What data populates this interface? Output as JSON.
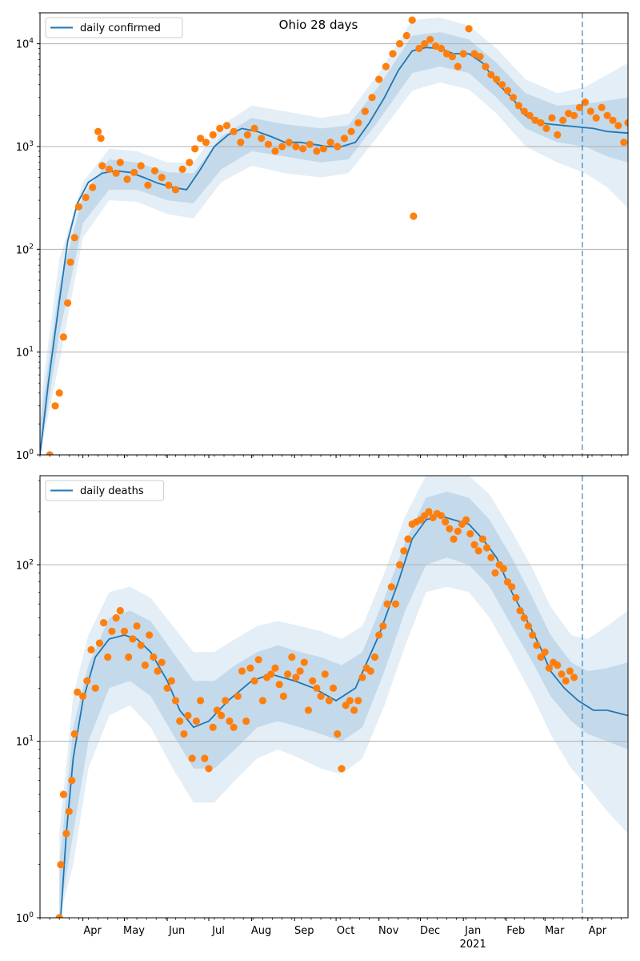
{
  "figure": {
    "title": "Ohio 28 days"
  },
  "colors": {
    "model": "#1f77b4",
    "observed": "#ff7f0e",
    "band": "#1f77b4",
    "grid": "#b0b0b0"
  },
  "chart_data": [
    {
      "type": "line",
      "yscale": "log",
      "ylim": [
        1,
        20000
      ],
      "xlim": [
        "2020-03-01",
        "2021-04-30"
      ],
      "grid": "horizontal major lines",
      "legend": {
        "position": "top-left",
        "entries": [
          "daily confirmed"
        ]
      },
      "yticks": [
        {
          "value": 1,
          "label": "10^0"
        },
        {
          "value": 10,
          "label": "10^1"
        },
        {
          "value": 100,
          "label": "10^2"
        },
        {
          "value": 1000,
          "label": "10^3"
        },
        {
          "value": 10000,
          "label": "10^4"
        }
      ],
      "xticks": [],
      "vline": "2021-03-28",
      "series": [
        {
          "name": "daily confirmed",
          "x": [
            "2020-03-01",
            "2020-03-07",
            "2020-03-14",
            "2020-03-21",
            "2020-03-28",
            "2020-04-05",
            "2020-04-15",
            "2020-04-25",
            "2020-05-05",
            "2020-05-15",
            "2020-05-25",
            "2020-06-05",
            "2020-06-15",
            "2020-06-25",
            "2020-07-05",
            "2020-07-15",
            "2020-07-25",
            "2020-08-05",
            "2020-08-15",
            "2020-08-25",
            "2020-09-05",
            "2020-09-15",
            "2020-09-25",
            "2020-10-05",
            "2020-10-15",
            "2020-10-25",
            "2020-11-05",
            "2020-11-15",
            "2020-11-25",
            "2020-12-05",
            "2020-12-15",
            "2020-12-25",
            "2021-01-05",
            "2021-01-15",
            "2021-01-25",
            "2021-02-05",
            "2021-02-15",
            "2021-02-25",
            "2021-03-05",
            "2021-03-15",
            "2021-03-25",
            "2021-04-05",
            "2021-04-15",
            "2021-04-30"
          ],
          "y": [
            1,
            5,
            25,
            120,
            280,
            450,
            550,
            580,
            560,
            500,
            440,
            400,
            380,
            600,
            1000,
            1300,
            1500,
            1400,
            1250,
            1100,
            1100,
            1050,
            1000,
            1000,
            1100,
            1700,
            3000,
            5500,
            8500,
            9200,
            9000,
            8000,
            8000,
            6500,
            4200,
            3000,
            2000,
            1700,
            1650,
            1600,
            1550,
            1500,
            1400,
            1350
          ]
        }
      ],
      "observed_points": {
        "x": [
          "2020-03-08",
          "2020-03-12",
          "2020-03-15",
          "2020-03-18",
          "2020-03-21",
          "2020-03-23",
          "2020-03-26",
          "2020-03-29",
          "2020-04-03",
          "2020-04-08",
          "2020-04-12",
          "2020-04-14",
          "2020-04-15",
          "2020-04-20",
          "2020-04-25",
          "2020-04-28",
          "2020-05-03",
          "2020-05-08",
          "2020-05-13",
          "2020-05-18",
          "2020-05-23",
          "2020-05-28",
          "2020-06-02",
          "2020-06-07",
          "2020-06-12",
          "2020-06-17",
          "2020-06-21",
          "2020-06-25",
          "2020-06-29",
          "2020-07-04",
          "2020-07-09",
          "2020-07-14",
          "2020-07-19",
          "2020-07-24",
          "2020-07-29",
          "2020-08-03",
          "2020-08-08",
          "2020-08-13",
          "2020-08-18",
          "2020-08-23",
          "2020-08-28",
          "2020-09-02",
          "2020-09-07",
          "2020-09-12",
          "2020-09-17",
          "2020-09-22",
          "2020-09-27",
          "2020-10-02",
          "2020-10-07",
          "2020-10-12",
          "2020-10-17",
          "2020-10-22",
          "2020-10-27",
          "2020-11-01",
          "2020-11-06",
          "2020-11-11",
          "2020-11-16",
          "2020-11-21",
          "2020-11-25",
          "2020-11-26",
          "2020-11-30",
          "2020-12-04",
          "2020-12-08",
          "2020-12-12",
          "2020-12-16",
          "2020-12-20",
          "2020-12-24",
          "2020-12-28",
          "2021-01-01",
          "2021-01-05",
          "2021-01-09",
          "2021-01-13",
          "2021-01-17",
          "2021-01-21",
          "2021-01-25",
          "2021-01-29",
          "2021-02-02",
          "2021-02-06",
          "2021-02-10",
          "2021-02-14",
          "2021-02-18",
          "2021-02-22",
          "2021-02-26",
          "2021-03-02",
          "2021-03-06",
          "2021-03-10",
          "2021-03-14",
          "2021-03-18",
          "2021-03-22",
          "2021-03-26",
          "2021-03-30",
          "2021-04-03",
          "2021-04-07",
          "2021-04-11",
          "2021-04-15",
          "2021-04-19",
          "2021-04-23",
          "2021-04-27",
          "2021-04-30"
        ],
        "y": [
          1,
          3,
          4,
          14,
          30,
          75,
          130,
          260,
          320,
          400,
          1400,
          1200,
          650,
          600,
          550,
          700,
          480,
          560,
          650,
          420,
          580,
          500,
          420,
          380,
          600,
          700,
          950,
          1200,
          1100,
          1300,
          1500,
          1600,
          1400,
          1100,
          1300,
          1500,
          1200,
          1050,
          900,
          1000,
          1100,
          1000,
          950,
          1050,
          900,
          950,
          1100,
          1000,
          1200,
          1400,
          1700,
          2200,
          3000,
          4500,
          6000,
          8000,
          10000,
          12000,
          17000,
          210,
          9000,
          10000,
          11000,
          9500,
          9000,
          8000,
          7500,
          6000,
          8000,
          14000,
          8000,
          7500,
          6000,
          5000,
          4500,
          4000,
          3500,
          3000,
          2500,
          2200,
          2000,
          1800,
          1700,
          1500,
          1900,
          1300,
          1800,
          2100,
          2000,
          2400,
          2700,
          2200,
          1900,
          2400,
          2000,
          1800,
          1600,
          1100,
          1700
        ]
      },
      "bands": {
        "x": [
          "2020-03-01",
          "2020-03-15",
          "2020-04-01",
          "2020-04-20",
          "2020-05-10",
          "2020-06-01",
          "2020-06-20",
          "2020-07-10",
          "2020-08-01",
          "2020-08-25",
          "2020-09-20",
          "2020-10-10",
          "2020-11-01",
          "2020-11-25",
          "2020-12-15",
          "2021-01-05",
          "2021-01-25",
          "2021-02-15",
          "2021-03-10",
          "2021-03-30",
          "2021-04-15",
          "2021-04-30"
        ],
        "inner_low": [
          1,
          15,
          180,
          380,
          380,
          300,
          280,
          600,
          900,
          800,
          700,
          750,
          1800,
          5200,
          6000,
          5200,
          3000,
          1500,
          1100,
          1000,
          800,
          700
        ],
        "inner_high": [
          2,
          45,
          330,
          750,
          700,
          560,
          550,
          1250,
          1900,
          1650,
          1500,
          1600,
          3900,
          12000,
          13000,
          11000,
          6500,
          3300,
          2500,
          2600,
          2800,
          3000
        ],
        "outer_low": [
          1,
          8,
          130,
          300,
          290,
          220,
          200,
          450,
          650,
          550,
          500,
          550,
          1300,
          3500,
          4200,
          3600,
          2100,
          1000,
          700,
          550,
          400,
          250
        ],
        "outer_high": [
          3,
          80,
          450,
          950,
          900,
          700,
          700,
          1600,
          2500,
          2200,
          1900,
          2100,
          5200,
          17000,
          18000,
          15000,
          9000,
          4500,
          3300,
          3800,
          5000,
          6500
        ]
      }
    },
    {
      "type": "line",
      "yscale": "log",
      "ylim": [
        1,
        320
      ],
      "xlim": [
        "2020-03-01",
        "2021-04-30"
      ],
      "grid": "horizontal major lines",
      "legend": {
        "position": "top-left",
        "entries": [
          "daily deaths"
        ]
      },
      "yticks": [
        {
          "value": 1,
          "label": "10^0"
        },
        {
          "value": 10,
          "label": "10^1"
        },
        {
          "value": 100,
          "label": "10^2"
        }
      ],
      "xticks": [
        {
          "date": "2020-04-01",
          "label": "Apr"
        },
        {
          "date": "2020-05-01",
          "label": "May"
        },
        {
          "date": "2020-06-01",
          "label": "Jun"
        },
        {
          "date": "2020-07-01",
          "label": "Jul"
        },
        {
          "date": "2020-08-01",
          "label": "Aug"
        },
        {
          "date": "2020-09-01",
          "label": "Sep"
        },
        {
          "date": "2020-10-01",
          "label": "Oct"
        },
        {
          "date": "2020-11-01",
          "label": "Nov"
        },
        {
          "date": "2020-12-01",
          "label": "Dec"
        },
        {
          "date": "2021-01-01",
          "label": "Jan",
          "sublabel": "2021"
        },
        {
          "date": "2021-02-01",
          "label": "Feb"
        },
        {
          "date": "2021-03-01",
          "label": "Mar"
        },
        {
          "date": "2021-04-01",
          "label": "Apr"
        }
      ],
      "vline": "2021-03-28",
      "series": [
        {
          "name": "daily deaths",
          "x": [
            "2020-03-16",
            "2020-03-20",
            "2020-03-25",
            "2020-04-01",
            "2020-04-10",
            "2020-04-20",
            "2020-05-01",
            "2020-05-10",
            "2020-05-20",
            "2020-06-01",
            "2020-06-10",
            "2020-06-20",
            "2020-07-01",
            "2020-07-15",
            "2020-08-01",
            "2020-08-15",
            "2020-09-01",
            "2020-09-15",
            "2020-10-01",
            "2020-10-15",
            "2020-11-01",
            "2020-11-15",
            "2020-11-25",
            "2020-12-05",
            "2020-12-15",
            "2020-12-25",
            "2021-01-05",
            "2021-01-15",
            "2021-01-25",
            "2021-02-05",
            "2021-02-15",
            "2021-02-25",
            "2021-03-05",
            "2021-03-15",
            "2021-03-25",
            "2021-04-05",
            "2021-04-15",
            "2021-04-30"
          ],
          "y": [
            1,
            3,
            8,
            17,
            30,
            38,
            40,
            38,
            32,
            22,
            15,
            12,
            13,
            17,
            22,
            24,
            22,
            20,
            17,
            20,
            40,
            80,
            140,
            180,
            190,
            180,
            170,
            140,
            110,
            70,
            50,
            35,
            25,
            20,
            17,
            15,
            15,
            14
          ]
        }
      ],
      "observed_points": {
        "x": [
          "2020-03-15",
          "2020-03-16",
          "2020-03-18",
          "2020-03-20",
          "2020-03-22",
          "2020-03-24",
          "2020-03-26",
          "2020-03-28",
          "2020-04-01",
          "2020-04-04",
          "2020-04-07",
          "2020-04-10",
          "2020-04-13",
          "2020-04-16",
          "2020-04-19",
          "2020-04-22",
          "2020-04-25",
          "2020-04-28",
          "2020-05-01",
          "2020-05-04",
          "2020-05-07",
          "2020-05-10",
          "2020-05-13",
          "2020-05-16",
          "2020-05-19",
          "2020-05-22",
          "2020-05-25",
          "2020-05-28",
          "2020-06-01",
          "2020-06-04",
          "2020-06-07",
          "2020-06-10",
          "2020-06-13",
          "2020-06-16",
          "2020-06-19",
          "2020-06-22",
          "2020-06-25",
          "2020-06-28",
          "2020-07-01",
          "2020-07-04",
          "2020-07-07",
          "2020-07-10",
          "2020-07-13",
          "2020-07-16",
          "2020-07-19",
          "2020-07-22",
          "2020-07-25",
          "2020-07-28",
          "2020-07-31",
          "2020-08-03",
          "2020-08-06",
          "2020-08-09",
          "2020-08-12",
          "2020-08-15",
          "2020-08-18",
          "2020-08-21",
          "2020-08-24",
          "2020-08-27",
          "2020-08-30",
          "2020-09-02",
          "2020-09-05",
          "2020-09-08",
          "2020-09-11",
          "2020-09-14",
          "2020-09-17",
          "2020-09-20",
          "2020-09-23",
          "2020-09-26",
          "2020-09-29",
          "2020-10-02",
          "2020-10-05",
          "2020-10-08",
          "2020-10-11",
          "2020-10-14",
          "2020-10-17",
          "2020-10-20",
          "2020-10-23",
          "2020-10-26",
          "2020-10-29",
          "2020-11-01",
          "2020-11-04",
          "2020-11-07",
          "2020-11-10",
          "2020-11-13",
          "2020-11-16",
          "2020-11-19",
          "2020-11-22",
          "2020-11-25",
          "2020-11-28",
          "2020-12-01",
          "2020-12-04",
          "2020-12-07",
          "2020-12-10",
          "2020-12-13",
          "2020-12-16",
          "2020-12-19",
          "2020-12-22",
          "2020-12-25",
          "2020-12-28",
          "2020-12-31",
          "2021-01-03",
          "2021-01-06",
          "2021-01-09",
          "2021-01-12",
          "2021-01-15",
          "2021-01-18",
          "2021-01-21",
          "2021-01-24",
          "2021-01-27",
          "2021-01-30",
          "2021-02-02",
          "2021-02-05",
          "2021-02-08",
          "2021-02-11",
          "2021-02-14",
          "2021-02-17",
          "2021-02-20",
          "2021-02-23",
          "2021-02-26",
          "2021-03-01",
          "2021-03-04",
          "2021-03-07",
          "2021-03-10",
          "2021-03-13",
          "2021-03-16",
          "2021-03-19",
          "2021-03-22"
        ],
        "y": [
          1,
          2,
          5,
          3,
          4,
          6,
          11,
          19,
          18,
          22,
          33,
          20,
          36,
          47,
          30,
          42,
          50,
          55,
          42,
          30,
          38,
          45,
          35,
          27,
          40,
          30,
          25,
          28,
          20,
          22,
          17,
          13,
          11,
          14,
          8,
          13,
          17,
          8,
          7,
          12,
          15,
          14,
          17,
          13,
          12,
          18,
          25,
          13,
          26,
          22,
          29,
          17,
          23,
          24,
          26,
          21,
          18,
          24,
          30,
          23,
          25,
          28,
          15,
          22,
          20,
          18,
          24,
          17,
          20,
          11,
          7,
          16,
          17,
          15,
          17,
          23,
          26,
          25,
          30,
          40,
          45,
          60,
          75,
          60,
          100,
          120,
          140,
          170,
          175,
          180,
          190,
          200,
          185,
          195,
          190,
          175,
          160,
          140,
          155,
          170,
          180,
          150,
          130,
          120,
          140,
          125,
          110,
          90,
          100,
          95,
          80,
          75,
          65,
          55,
          50,
          45,
          40,
          35,
          30,
          32,
          26,
          28,
          27,
          24,
          22,
          25,
          23
        ]
      },
      "bands": {
        "x": [
          "2020-03-15",
          "2020-03-25",
          "2020-04-05",
          "2020-04-20",
          "2020-05-05",
          "2020-05-20",
          "2020-06-05",
          "2020-06-20",
          "2020-07-05",
          "2020-07-20",
          "2020-08-05",
          "2020-08-20",
          "2020-09-05",
          "2020-09-20",
          "2020-10-05",
          "2020-10-20",
          "2020-11-05",
          "2020-11-20",
          "2020-12-05",
          "2020-12-20",
          "2021-01-05",
          "2021-01-20",
          "2021-02-05",
          "2021-02-20",
          "2021-03-05",
          "2021-03-20",
          "2021-04-01",
          "2021-04-15",
          "2021-04-30"
        ],
        "inner_low": [
          1,
          3,
          10,
          20,
          22,
          18,
          11,
          7,
          7,
          9,
          12,
          13,
          12,
          11,
          10,
          12,
          25,
          55,
          100,
          110,
          100,
          75,
          45,
          28,
          18,
          13,
          11,
          10,
          9
        ],
        "inner_high": [
          2,
          12,
          27,
          50,
          55,
          48,
          32,
          22,
          22,
          27,
          32,
          35,
          32,
          30,
          27,
          32,
          65,
          135,
          240,
          260,
          240,
          180,
          110,
          65,
          40,
          28,
          25,
          26,
          28
        ],
        "outer_low": [
          1,
          2,
          7,
          14,
          16,
          12,
          7,
          4.5,
          4.5,
          6,
          8,
          9,
          8,
          7,
          6.5,
          8,
          16,
          35,
          70,
          75,
          70,
          50,
          30,
          18,
          11,
          7,
          5.5,
          4,
          3
        ],
        "outer_high": [
          3,
          18,
          40,
          70,
          75,
          65,
          45,
          32,
          32,
          38,
          45,
          48,
          45,
          42,
          38,
          45,
          90,
          190,
          320,
          320,
          320,
          250,
          155,
          95,
          58,
          40,
          38,
          45,
          55
        ]
      }
    }
  ]
}
